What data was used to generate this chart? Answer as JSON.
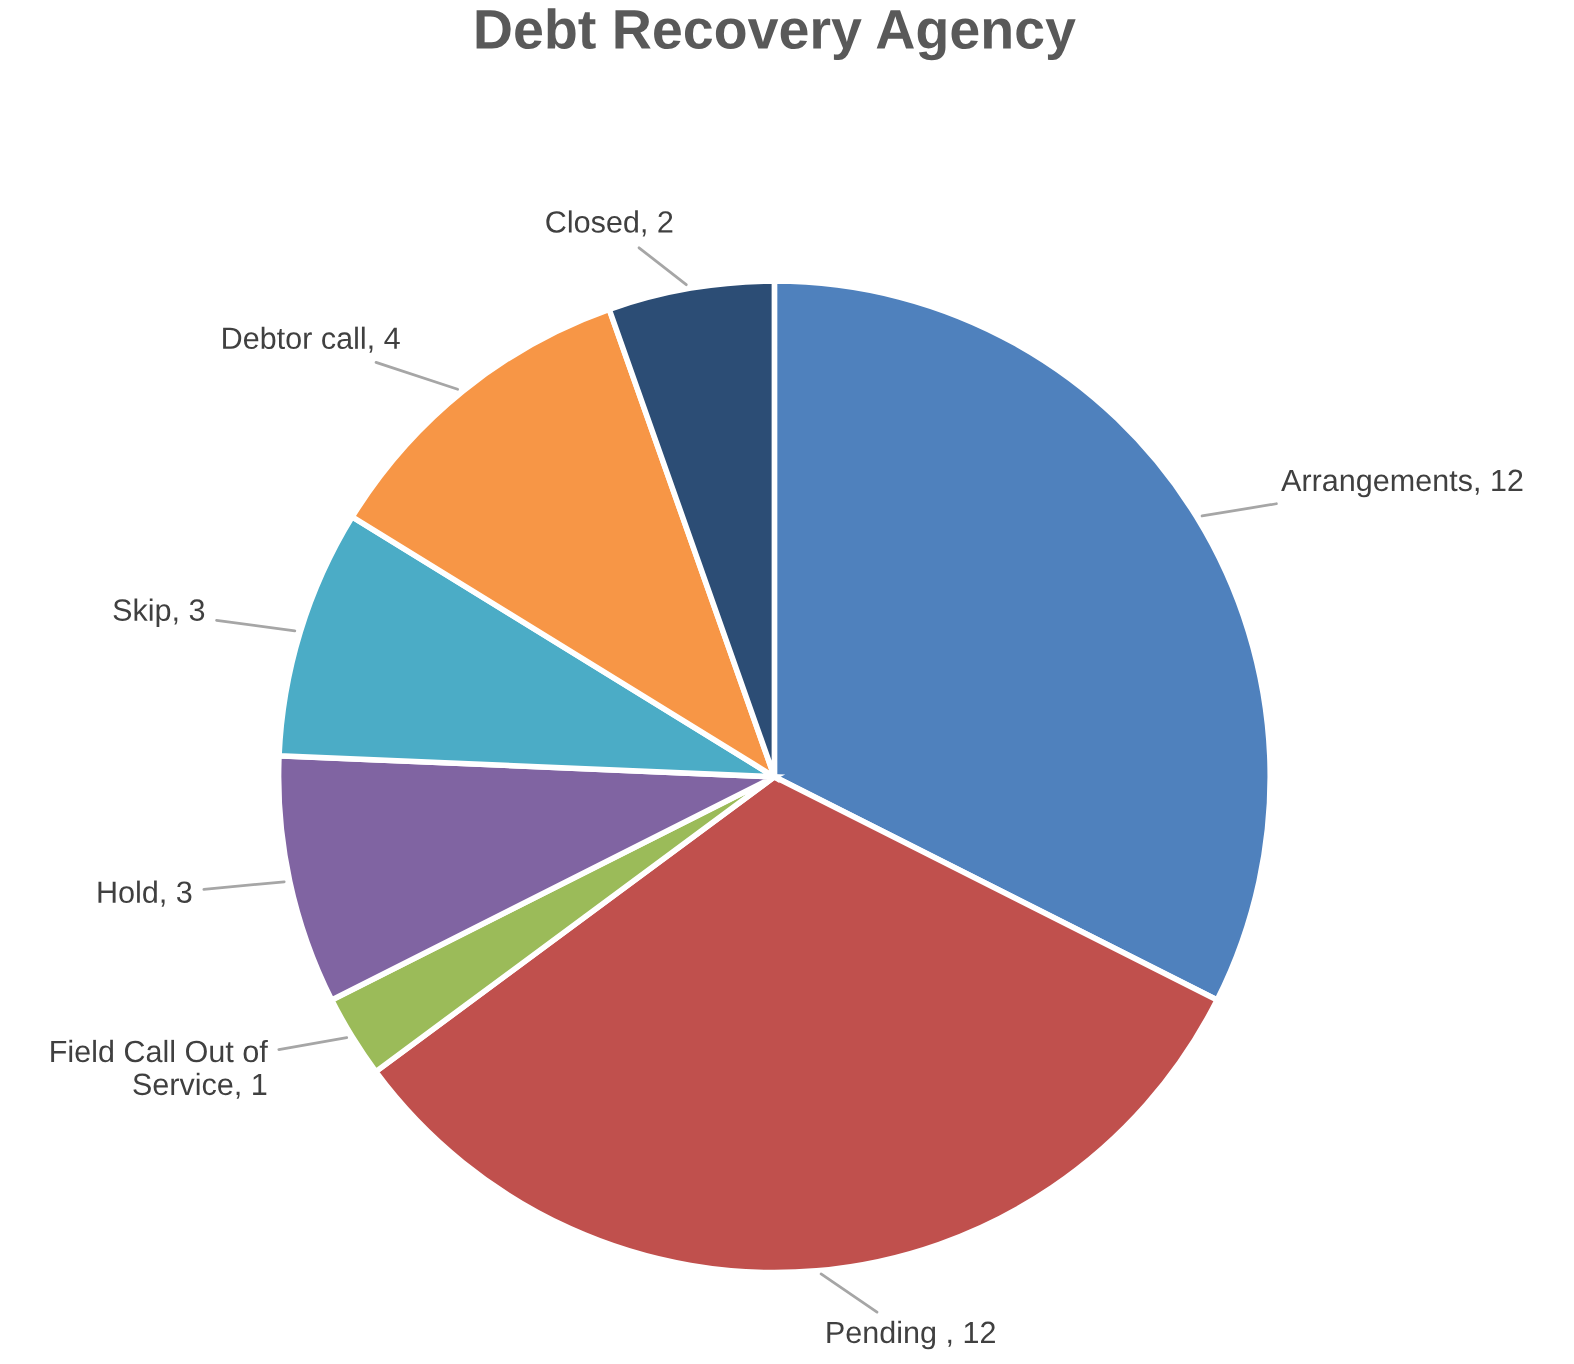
{
  "chart_data": {
    "type": "pie",
    "title": "Debt Recovery Agency",
    "categories": [
      "Arrangements, 12",
      "Pending , 12",
      "Field Call Out of Service, 1",
      "Hold, 3",
      "Skip, 3",
      "Debtor call, 4",
      "Closed, 2"
    ],
    "values": [
      12,
      12,
      1,
      3,
      3,
      4,
      2
    ],
    "colors": [
      "#4f81bd",
      "#c0504d",
      "#9bbb59",
      "#8064a2",
      "#4bacc6",
      "#f79646",
      "#2c4d75"
    ]
  }
}
